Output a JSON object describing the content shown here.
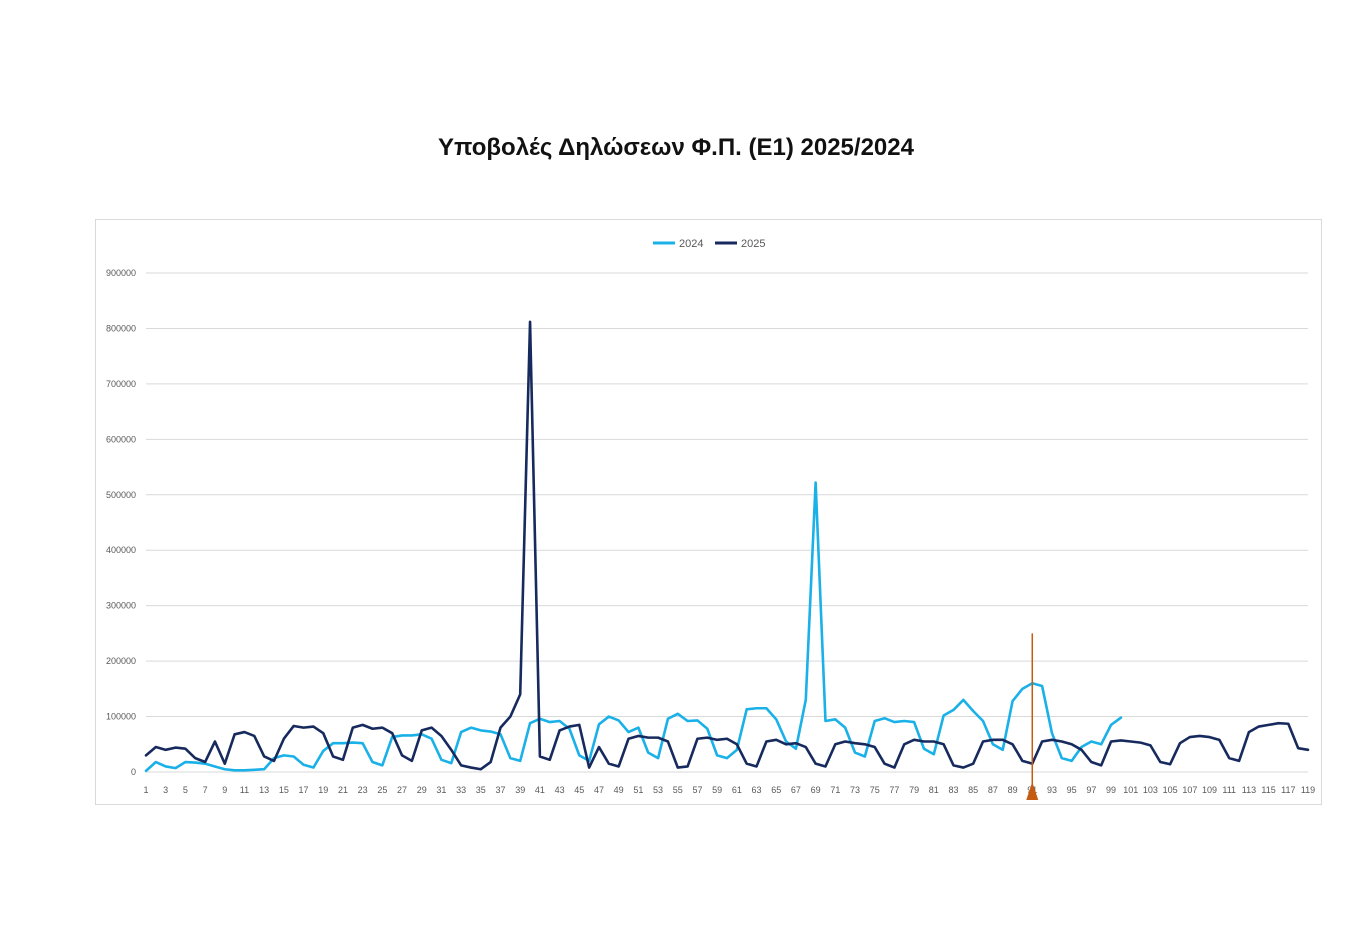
{
  "chart_data": {
    "type": "line",
    "title": "Υποβολές Δηλώσεων Φ.Π. (Ε1) 2025/2024",
    "xlabel": "",
    "ylabel": "",
    "ylim": [
      0,
      900000
    ],
    "yticks": [
      "0",
      "100000",
      "200000",
      "300000",
      "400000",
      "500000",
      "600000",
      "700000",
      "800000",
      "900000"
    ],
    "xtick_labels": [
      "1",
      "3",
      "5",
      "7",
      "9",
      "11",
      "13",
      "15",
      "17",
      "19",
      "21",
      "23",
      "25",
      "27",
      "29",
      "31",
      "33",
      "35",
      "37",
      "39",
      "41",
      "43",
      "45",
      "47",
      "49",
      "51",
      "53",
      "55",
      "57",
      "59",
      "61",
      "63",
      "65",
      "67",
      "69",
      "71",
      "73",
      "75",
      "77",
      "79",
      "81",
      "83",
      "85",
      "87",
      "89",
      "91",
      "93",
      "95",
      "97",
      "99",
      "101",
      "103",
      "105",
      "107",
      "109",
      "111",
      "113",
      "115",
      "117",
      "119"
    ],
    "xrange": [
      1,
      119
    ],
    "legend_position": "top-center",
    "grid": true,
    "marker_day": 91,
    "series": [
      {
        "name": "2024",
        "color": "#1ab0e8",
        "values": [
          2000,
          18000,
          10000,
          7000,
          18000,
          17000,
          15000,
          10000,
          5000,
          3000,
          3000,
          4000,
          5000,
          25000,
          30000,
          28000,
          13000,
          8000,
          38000,
          52000,
          52000,
          53000,
          52000,
          18000,
          12000,
          63000,
          66000,
          66000,
          68000,
          60000,
          22000,
          16000,
          72000,
          80000,
          75000,
          73000,
          68000,
          25000,
          20000,
          88000,
          96000,
          90000,
          92000,
          78000,
          30000,
          20000,
          86000,
          100000,
          93000,
          72000,
          80000,
          35000,
          25000,
          96000,
          105000,
          92000,
          93000,
          78000,
          30000,
          25000,
          40000,
          113000,
          115000,
          115000,
          95000,
          55000,
          42000,
          130000,
          522000,
          92000,
          95000,
          80000,
          35000,
          28000,
          92000,
          97000,
          90000,
          92000,
          90000,
          42000,
          32000,
          102000,
          112000,
          130000,
          110000,
          92000,
          50000,
          40000,
          128000,
          150000,
          160000,
          155000,
          70000,
          25000,
          20000,
          45000,
          55000,
          50000,
          85000,
          98000
        ]
      },
      {
        "name": "2025",
        "color": "#172a5e",
        "values": [
          30000,
          45000,
          40000,
          44000,
          42000,
          25000,
          18000,
          55000,
          15000,
          68000,
          72000,
          65000,
          28000,
          20000,
          60000,
          83000,
          80000,
          82000,
          70000,
          28000,
          22000,
          80000,
          85000,
          78000,
          80000,
          70000,
          30000,
          20000,
          75000,
          80000,
          65000,
          40000,
          12000,
          8000,
          5000,
          18000,
          80000,
          100000,
          140000,
          812000,
          28000,
          22000,
          75000,
          82000,
          85000,
          8000,
          45000,
          15000,
          10000,
          60000,
          65000,
          62000,
          62000,
          55000,
          8000,
          10000,
          60000,
          62000,
          58000,
          60000,
          50000,
          15000,
          10000,
          55000,
          58000,
          50000,
          52000,
          45000,
          15000,
          10000,
          50000,
          55000,
          52000,
          50000,
          45000,
          15000,
          8000,
          50000,
          58000,
          55000,
          55000,
          50000,
          12000,
          8000,
          15000,
          55000,
          58000,
          58000,
          50000,
          20000,
          15000,
          55000,
          58000,
          55000,
          50000,
          40000,
          18000,
          12000,
          55000,
          57000,
          55000,
          53000,
          48000,
          18000,
          14000,
          52000,
          63000,
          65000,
          63000,
          58000,
          25000,
          20000,
          72000,
          82000,
          85000,
          88000,
          87000,
          43000,
          40000
        ]
      }
    ]
  }
}
